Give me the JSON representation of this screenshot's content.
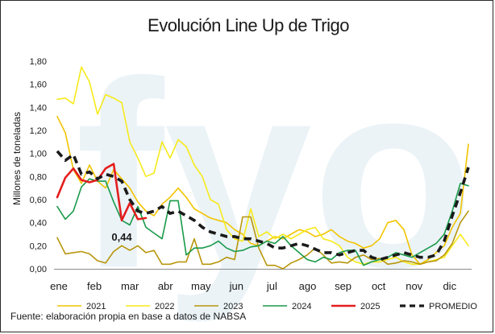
{
  "chart_data": {
    "type": "line",
    "title": "Evolución Line Up de Trigo",
    "ylabel": "Millones de toneladas",
    "xlabel": "",
    "ylim": [
      0,
      1.8
    ],
    "yticks": [
      "0,00",
      "0,20",
      "0,40",
      "0,60",
      "0,80",
      "1,00",
      "1,20",
      "1,40",
      "1,60",
      "1,80"
    ],
    "x_points_per_year": 52,
    "months": [
      "ene",
      "feb",
      "mar",
      "abr",
      "may",
      "jun",
      "jul",
      "ago",
      "sep",
      "oct",
      "nov",
      "dic"
    ],
    "watermark": "fyo",
    "annotation": {
      "text": "0,44",
      "series": "2025",
      "index": 11
    },
    "series": [
      {
        "name": "2021",
        "color": "#f2c400",
        "width": 1.6,
        "dash": "",
        "values": [
          1.32,
          1.18,
          0.86,
          0.74,
          0.9,
          0.76,
          0.7,
          0.86,
          0.78,
          0.7,
          0.58,
          0.5,
          0.46,
          0.56,
          0.62,
          0.7,
          0.62,
          0.52,
          0.48,
          0.44,
          0.42,
          0.4,
          0.34,
          0.3,
          0.22,
          0.2,
          0.24,
          0.28,
          0.26,
          0.3,
          0.34,
          0.32,
          0.28,
          0.3,
          0.34,
          0.28,
          0.24,
          0.22,
          0.18,
          0.2,
          0.26,
          0.4,
          0.42,
          0.34,
          0.12,
          0.04,
          0.08,
          0.14,
          0.2,
          0.36,
          0.48,
          1.08
        ]
      },
      {
        "name": "2022",
        "color": "#f7ea1a",
        "width": 1.6,
        "dash": "",
        "values": [
          1.47,
          1.48,
          1.43,
          1.75,
          1.62,
          1.34,
          1.51,
          1.48,
          1.44,
          1.1,
          0.96,
          0.8,
          0.83,
          1.1,
          0.96,
          1.12,
          1.06,
          0.9,
          0.8,
          0.6,
          0.56,
          0.34,
          0.26,
          0.24,
          0.52,
          0.28,
          0.32,
          0.26,
          0.3,
          0.26,
          0.3,
          0.34,
          0.36,
          0.26,
          0.24,
          0.2,
          0.1,
          0.06,
          0.04,
          0.06,
          0.06,
          0.08,
          0.1,
          0.06,
          0.04,
          0.04,
          0.06,
          0.08,
          0.1,
          0.2,
          0.3,
          0.2
        ]
      },
      {
        "name": "2023",
        "color": "#b8960c",
        "width": 1.6,
        "dash": "",
        "values": [
          0.27,
          0.13,
          0.14,
          0.15,
          0.13,
          0.07,
          0.05,
          0.15,
          0.2,
          0.16,
          0.2,
          0.14,
          0.16,
          0.04,
          0.04,
          0.06,
          0.06,
          0.26,
          0.04,
          0.04,
          0.06,
          0.1,
          0.08,
          0.45,
          0.45,
          0.18,
          0.03,
          0.03,
          0.0,
          0.05,
          0.08,
          0.12,
          0.18,
          0.12,
          0.05,
          0.06,
          0.05,
          0.1,
          0.12,
          0.08,
          0.09,
          0.04,
          0.05,
          0.07,
          0.06,
          0.04,
          0.06,
          0.07,
          0.12,
          0.22,
          0.4,
          0.5
        ]
      },
      {
        "name": "2024",
        "color": "#1a9a4a",
        "width": 1.6,
        "dash": "",
        "values": [
          0.54,
          0.43,
          0.5,
          0.71,
          0.78,
          0.76,
          0.76,
          0.58,
          0.42,
          0.38,
          0.54,
          0.36,
          0.31,
          0.26,
          0.59,
          0.59,
          0.12,
          0.18,
          0.18,
          0.2,
          0.24,
          0.18,
          0.15,
          0.16,
          0.19,
          0.2,
          0.24,
          0.22,
          0.28,
          0.2,
          0.14,
          0.08,
          0.06,
          0.1,
          0.08,
          0.14,
          0.16,
          0.16,
          0.03,
          0.06,
          0.08,
          0.1,
          0.14,
          0.12,
          0.1,
          0.14,
          0.18,
          0.22,
          0.3,
          0.5,
          0.74,
          0.72
        ]
      },
      {
        "name": "2025",
        "color": "#e41e1e",
        "width": 2.6,
        "dash": "",
        "values": [
          0.62,
          0.79,
          0.87,
          0.77,
          0.75,
          0.77,
          0.87,
          0.91,
          0.42,
          0.57,
          0.43,
          0.44
        ]
      },
      {
        "name": "PROMEDIO",
        "color": "#1a1a1a",
        "width": 3.6,
        "dash": "9,6",
        "values": [
          1.02,
          0.94,
          0.99,
          0.82,
          0.84,
          0.78,
          0.82,
          0.8,
          0.76,
          0.6,
          0.5,
          0.48,
          0.5,
          0.54,
          0.48,
          0.5,
          0.46,
          0.42,
          0.36,
          0.32,
          0.3,
          0.28,
          0.28,
          0.26,
          0.26,
          0.24,
          0.22,
          0.18,
          0.18,
          0.2,
          0.22,
          0.2,
          0.17,
          0.14,
          0.14,
          0.12,
          0.14,
          0.16,
          0.16,
          0.1,
          0.08,
          0.1,
          0.12,
          0.14,
          0.12,
          0.1,
          0.1,
          0.12,
          0.24,
          0.46,
          0.66,
          0.88
        ]
      }
    ],
    "legend": [
      "2021",
      "2022",
      "2023",
      "2024",
      "2025",
      "PROMEDIO"
    ]
  },
  "source": "Fuente: elaboración propia en base a datos de NABSA"
}
